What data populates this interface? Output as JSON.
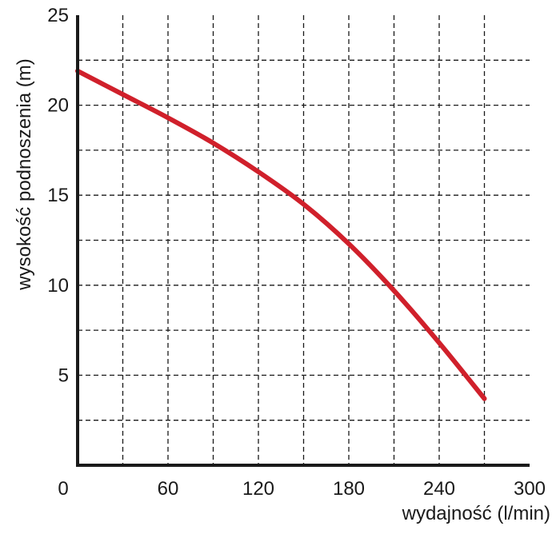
{
  "chart_data": {
    "type": "line",
    "title": "",
    "xlabel": "wydajność (l/min)",
    "ylabel": "wysokość podnoszenia (m)",
    "xlim": [
      0,
      300
    ],
    "ylim": [
      0,
      25
    ],
    "x_ticks": [
      "0",
      "60",
      "120",
      "180",
      "240",
      "300"
    ],
    "y_ticks": [
      "5",
      "10",
      "15",
      "20",
      "25"
    ],
    "x_tick_values": [
      0,
      60,
      120,
      180,
      240,
      300
    ],
    "y_tick_values": [
      5,
      10,
      15,
      20,
      25
    ],
    "x_grid_values": [
      30,
      60,
      90,
      120,
      150,
      180,
      210,
      240,
      270
    ],
    "y_grid_values": [
      2.5,
      5,
      7.5,
      10,
      12.5,
      15,
      17.5,
      20,
      22.5
    ],
    "grid": true,
    "grid_style": "dashed",
    "legend": "none",
    "series": [
      {
        "color": "#d0202b",
        "x": [
          0,
          30,
          60,
          90,
          120,
          150,
          180,
          210,
          240,
          270
        ],
        "y": [
          21.9,
          20.6,
          19.3,
          17.9,
          16.3,
          14.5,
          12.3,
          9.7,
          6.8,
          3.7
        ]
      }
    ]
  },
  "colors": {
    "axis": "#1a1a1a",
    "grid": "#1a1a1a",
    "series": "#d0202b",
    "background": "#ffffff"
  }
}
